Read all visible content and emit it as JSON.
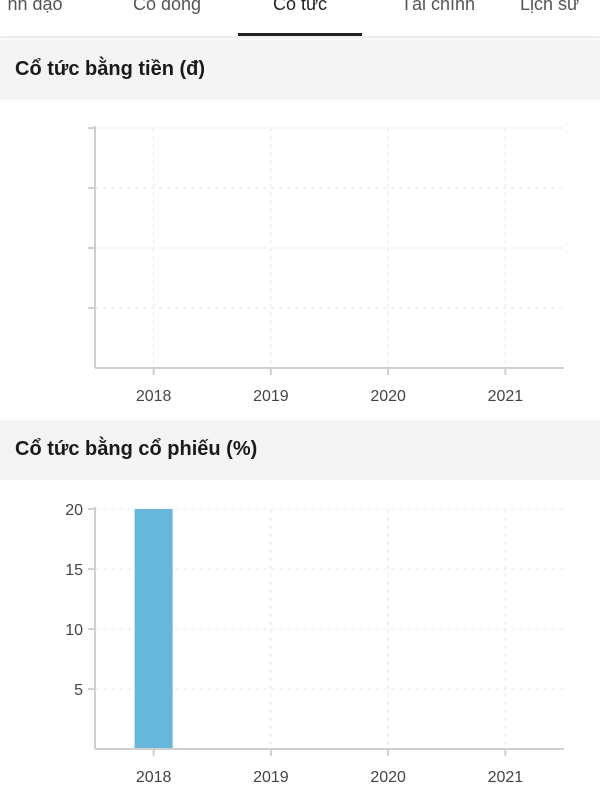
{
  "tabs": [
    {
      "label": "nh đạo",
      "active": false
    },
    {
      "label": "Cổ đông",
      "active": false
    },
    {
      "label": "Cổ tức",
      "active": true
    },
    {
      "label": "Tài chính",
      "active": false
    },
    {
      "label": "Lịch sử",
      "active": false
    }
  ],
  "sections": {
    "cash": {
      "title": "Cổ tức bằng tiền (đ)"
    },
    "stock": {
      "title": "Cổ tức bằng cổ phiếu (%)"
    }
  },
  "colors": {
    "bar": "#67b6dc",
    "axis": "#cfcfcf",
    "grid": "#e8e8e8"
  },
  "chart_data": [
    {
      "type": "bar",
      "categories": [
        "2018",
        "2019",
        "2020",
        "2021"
      ],
      "values": [
        null,
        null,
        null,
        null
      ],
      "y_ticks": [],
      "grid": true
    },
    {
      "type": "bar",
      "categories": [
        "2018",
        "2019",
        "2020",
        "2021"
      ],
      "values": [
        20,
        0,
        0,
        0
      ],
      "y_ticks": [
        5,
        10,
        15,
        20
      ],
      "ylim": [
        0,
        20
      ],
      "grid": true
    }
  ]
}
